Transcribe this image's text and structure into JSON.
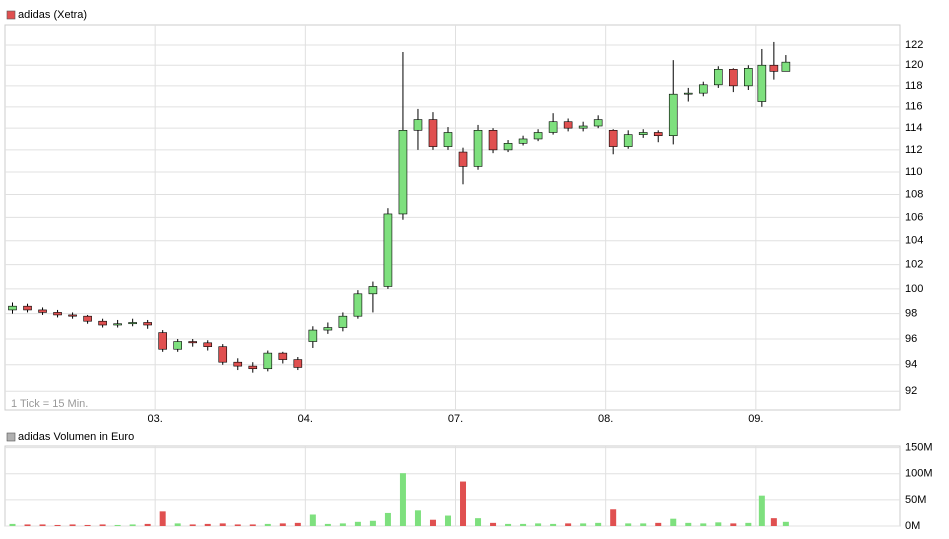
{
  "chart_data": [
    {
      "type": "candlestick",
      "title": "adidas (Xetra)",
      "annotation": "1 Tick = 15 Min.",
      "legend_color": "#e05050",
      "up_color": "#7ee07e",
      "down_color": "#e05050",
      "log_scale": true,
      "grid": true,
      "x": [
        0.05,
        0.15,
        0.25,
        0.35,
        0.45,
        0.55,
        0.65,
        0.75,
        0.85,
        0.95,
        1.05,
        1.15,
        1.25,
        1.35,
        1.45,
        1.55,
        1.65,
        1.75,
        1.85,
        1.95,
        2.05,
        2.15,
        2.25,
        2.35,
        2.45,
        2.55,
        2.65,
        2.75,
        2.85,
        2.95,
        3.05,
        3.15,
        3.25,
        3.35,
        3.45,
        3.55,
        3.65,
        3.75,
        3.85,
        3.95,
        4.05,
        4.15,
        4.25,
        4.35,
        4.45,
        4.55,
        4.65,
        4.75,
        4.85,
        4.95,
        5.04,
        5.12,
        5.2
      ],
      "open": [
        98.3,
        98.6,
        98.3,
        98.1,
        97.9,
        97.8,
        97.4,
        97.1,
        97.2,
        97.3,
        96.5,
        95.2,
        95.8,
        95.7,
        95.4,
        94.2,
        93.9,
        93.7,
        94.9,
        94.4,
        95.8,
        96.7,
        96.9,
        97.8,
        99.6,
        100.2,
        106.3,
        113.8,
        114.8,
        112.3,
        111.8,
        110.5,
        113.8,
        112.0,
        112.6,
        113.0,
        113.6,
        114.6,
        114.0,
        114.2,
        113.8,
        112.3,
        113.4,
        113.6,
        113.3,
        117.2,
        117.3,
        118.1,
        119.6,
        118.0,
        116.5,
        120.0,
        119.4
      ],
      "high": [
        98.9,
        98.8,
        98.5,
        98.3,
        98.1,
        97.9,
        97.6,
        97.5,
        97.6,
        97.5,
        96.7,
        96.0,
        96.0,
        95.9,
        95.6,
        94.5,
        94.2,
        95.1,
        95.0,
        94.6,
        97.0,
        97.3,
        98.1,
        99.9,
        100.6,
        106.8,
        121.3,
        115.8,
        115.5,
        114.1,
        112.2,
        114.3,
        114.0,
        112.9,
        113.3,
        113.9,
        115.4,
        114.9,
        114.6,
        115.2,
        113.9,
        113.8,
        113.9,
        113.8,
        120.5,
        117.8,
        118.4,
        119.9,
        119.7,
        120.0,
        121.6,
        122.3,
        121.0
      ],
      "low": [
        98.0,
        98.1,
        97.9,
        97.7,
        97.6,
        97.2,
        96.9,
        96.9,
        97.0,
        96.8,
        95.0,
        95.0,
        95.4,
        95.1,
        94.0,
        93.6,
        93.4,
        93.5,
        94.1,
        93.6,
        95.3,
        96.4,
        96.6,
        97.6,
        98.1,
        100.0,
        105.8,
        112.0,
        112.0,
        112.0,
        108.9,
        110.2,
        111.7,
        111.8,
        112.4,
        112.8,
        113.4,
        113.7,
        113.7,
        114.0,
        111.6,
        112.1,
        113.1,
        112.7,
        112.5,
        116.5,
        117.0,
        117.8,
        117.4,
        117.6,
        116.0,
        118.6,
        119.6
      ],
      "close": [
        98.6,
        98.3,
        98.1,
        97.9,
        97.8,
        97.4,
        97.1,
        97.2,
        97.3,
        97.1,
        95.2,
        95.8,
        95.7,
        95.4,
        94.2,
        93.9,
        93.7,
        94.9,
        94.4,
        93.8,
        96.7,
        96.9,
        97.8,
        99.6,
        100.2,
        106.3,
        113.8,
        114.8,
        112.3,
        113.6,
        110.5,
        113.8,
        112.0,
        112.6,
        113.0,
        113.6,
        114.6,
        114.0,
        114.2,
        114.8,
        112.3,
        113.4,
        113.6,
        113.3,
        117.2,
        117.3,
        118.1,
        119.6,
        118.0,
        119.7,
        120.0,
        119.4,
        120.3
      ],
      "xlim": [
        0,
        5.96
      ],
      "xticks": [
        {
          "value": 1,
          "label": "03."
        },
        {
          "value": 2,
          "label": "04."
        },
        {
          "value": 3,
          "label": "07."
        },
        {
          "value": 4,
          "label": "08."
        },
        {
          "value": 5,
          "label": "09."
        }
      ],
      "ylim": [
        90.6,
        124
      ],
      "yticks": [
        92,
        94,
        96,
        98,
        100,
        102,
        104,
        106,
        108,
        110,
        112,
        114,
        116,
        118,
        120,
        122
      ]
    },
    {
      "type": "bar",
      "title": "adidas Volumen in Euro",
      "legend_color": "#b0b0b0",
      "grid": true,
      "x": [
        0.05,
        0.15,
        0.25,
        0.35,
        0.45,
        0.55,
        0.65,
        0.75,
        0.85,
        0.95,
        1.05,
        1.15,
        1.25,
        1.35,
        1.45,
        1.55,
        1.65,
        1.75,
        1.85,
        1.95,
        2.05,
        2.15,
        2.25,
        2.35,
        2.45,
        2.55,
        2.65,
        2.75,
        2.85,
        2.95,
        3.05,
        3.15,
        3.25,
        3.35,
        3.45,
        3.55,
        3.65,
        3.75,
        3.85,
        3.95,
        4.05,
        4.15,
        4.25,
        4.35,
        4.45,
        4.55,
        4.65,
        4.75,
        4.85,
        4.95,
        5.04,
        5.12,
        5.2
      ],
      "values": [
        4000000,
        3000000,
        3000000,
        2000000,
        3000000,
        2000000,
        3000000,
        2000000,
        3000000,
        4000000,
        28000000,
        5000000,
        3000000,
        4000000,
        5000000,
        3000000,
        3000000,
        4000000,
        5000000,
        6000000,
        22000000,
        4000000,
        5000000,
        8000000,
        10000000,
        25000000,
        101000000,
        30000000,
        12000000,
        20000000,
        85000000,
        15000000,
        6000000,
        4000000,
        4000000,
        5000000,
        4000000,
        5000000,
        5000000,
        6000000,
        32000000,
        5000000,
        5000000,
        6000000,
        14000000,
        6000000,
        5000000,
        7000000,
        5000000,
        6000000,
        58000000,
        15000000,
        8000000
      ],
      "xlim": [
        0,
        5.96
      ],
      "ylim": [
        0,
        153000000
      ],
      "yticks": [
        {
          "value": 0,
          "label": "0M"
        },
        {
          "value": 50000000,
          "label": "50M"
        },
        {
          "value": 100000000,
          "label": "100M"
        },
        {
          "value": 150000000,
          "label": "150M"
        }
      ]
    }
  ]
}
